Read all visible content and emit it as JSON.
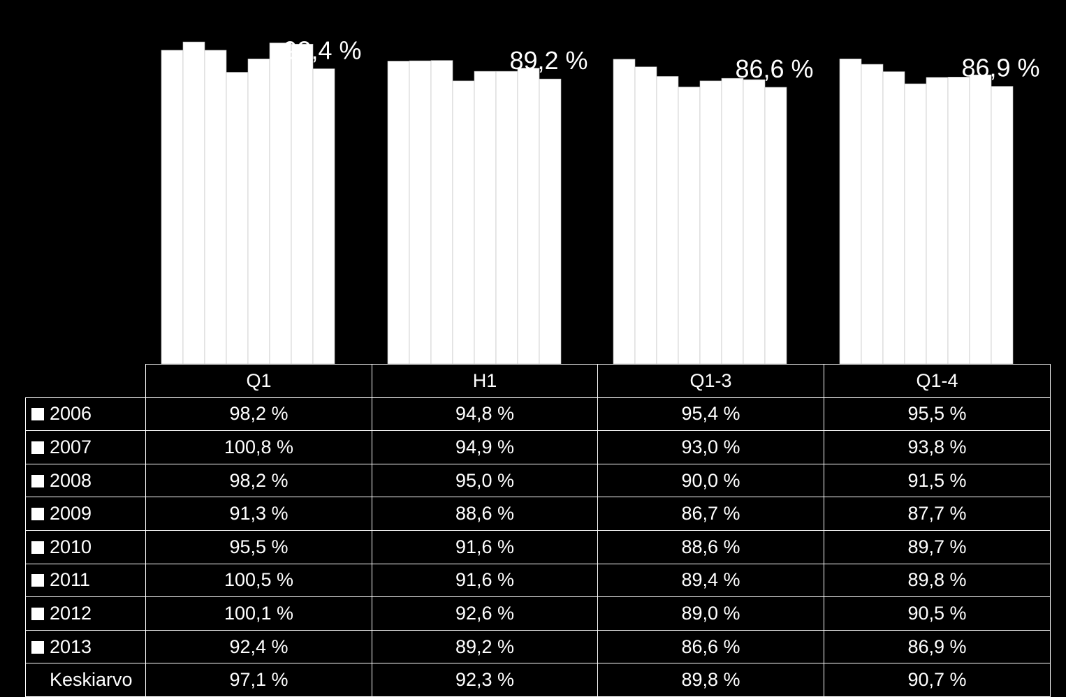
{
  "chart_data": {
    "type": "bar",
    "categories": [
      "Q1",
      "H1",
      "Q1-3",
      "Q1-4"
    ],
    "series": [
      {
        "name": "2006",
        "values": [
          98.2,
          94.8,
          95.4,
          95.5
        ]
      },
      {
        "name": "2007",
        "values": [
          100.8,
          94.9,
          93.0,
          93.8
        ]
      },
      {
        "name": "2008",
        "values": [
          98.2,
          95.0,
          90.0,
          91.5
        ]
      },
      {
        "name": "2009",
        "values": [
          91.3,
          88.6,
          86.7,
          87.7
        ]
      },
      {
        "name": "2010",
        "values": [
          95.5,
          91.6,
          88.6,
          89.7
        ]
      },
      {
        "name": "2011",
        "values": [
          100.5,
          91.6,
          89.4,
          89.8
        ]
      },
      {
        "name": "2012",
        "values": [
          100.1,
          92.6,
          89.0,
          90.5
        ]
      },
      {
        "name": "2013",
        "values": [
          92.4,
          89.2,
          86.6,
          86.9
        ]
      }
    ],
    "average": {
      "name": "Keskiarvo",
      "values": [
        97.1,
        92.3,
        89.8,
        90.7
      ]
    },
    "table_cells": [
      [
        "98,2 %",
        "94,8 %",
        "95,4 %",
        "95,5 %"
      ],
      [
        "100,8 %",
        "94,9 %",
        "93,0 %",
        "93,8 %"
      ],
      [
        "98,2 %",
        "95,0 %",
        "90,0 %",
        "91,5 %"
      ],
      [
        "91,3 %",
        "88,6 %",
        "86,7 %",
        "87,7 %"
      ],
      [
        "95,5 %",
        "91,6 %",
        "88,6 %",
        "89,7 %"
      ],
      [
        "100,5 %",
        "91,6 %",
        "89,4 %",
        "89,8 %"
      ],
      [
        "100,1 %",
        "92,6 %",
        "89,0 %",
        "90,5 %"
      ],
      [
        "92,4 %",
        "89,2 %",
        "86,6 %",
        "86,9 %"
      ]
    ],
    "average_cells": [
      "97,1 %",
      "92,3 %",
      "89,8 %",
      "90,7 %"
    ],
    "data_labels": [
      "92,4 %",
      "89,2 %",
      "86,6 %",
      "86,9 %"
    ],
    "ylim": [
      0,
      103
    ],
    "grid": false,
    "legend": "data-table",
    "colors": {
      "background": "#000000",
      "bars": "#ffffff",
      "bar_edge": "#bbbbbb",
      "text": "#ffffff"
    }
  }
}
